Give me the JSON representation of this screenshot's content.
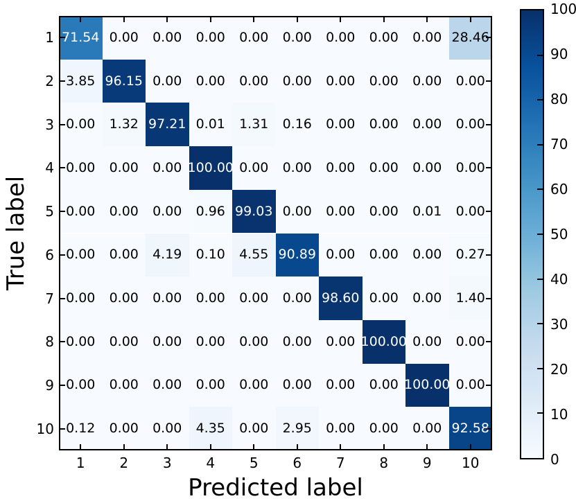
{
  "chart_data": {
    "type": "heatmap",
    "xlabel": "Predicted label",
    "ylabel": "True label",
    "x_categories": [
      "1",
      "2",
      "3",
      "4",
      "5",
      "6",
      "7",
      "8",
      "9",
      "10"
    ],
    "y_categories": [
      "1",
      "2",
      "3",
      "4",
      "5",
      "6",
      "7",
      "8",
      "9",
      "10"
    ],
    "matrix": [
      [
        71.54,
        0.0,
        0.0,
        0.0,
        0.0,
        0.0,
        0.0,
        0.0,
        0.0,
        28.46
      ],
      [
        3.85,
        96.15,
        0.0,
        0.0,
        0.0,
        0.0,
        0.0,
        0.0,
        0.0,
        0.0
      ],
      [
        0.0,
        1.32,
        97.21,
        0.01,
        1.31,
        0.16,
        0.0,
        0.0,
        0.0,
        0.0
      ],
      [
        0.0,
        0.0,
        0.0,
        100.0,
        0.0,
        0.0,
        0.0,
        0.0,
        0.0,
        0.0
      ],
      [
        0.0,
        0.0,
        0.0,
        0.96,
        99.03,
        0.0,
        0.0,
        0.0,
        0.01,
        0.0
      ],
      [
        0.0,
        0.0,
        4.19,
        0.1,
        4.55,
        90.89,
        0.0,
        0.0,
        0.0,
        0.27
      ],
      [
        0.0,
        0.0,
        0.0,
        0.0,
        0.0,
        0.0,
        98.6,
        0.0,
        0.0,
        1.4
      ],
      [
        0.0,
        0.0,
        0.0,
        0.0,
        0.0,
        0.0,
        0.0,
        100.0,
        0.0,
        0.0
      ],
      [
        0.0,
        0.0,
        0.0,
        0.0,
        0.0,
        0.0,
        0.0,
        0.0,
        100.0,
        0.0
      ],
      [
        0.12,
        0.0,
        0.0,
        4.35,
        0.0,
        2.95,
        0.0,
        0.0,
        0.0,
        92.58
      ]
    ],
    "value_decimals": 2,
    "vmin": 0,
    "vmax": 100,
    "colormap": "Blues",
    "colorbar_ticks": [
      0,
      10,
      20,
      30,
      40,
      50,
      60,
      70,
      80,
      90,
      100
    ],
    "colorbar_position": "right",
    "grid": false,
    "tick_direction": "in"
  },
  "colors": {
    "colormap_stops": [
      "#f7fbff",
      "#deebf7",
      "#c6dbef",
      "#9ecae1",
      "#6baed6",
      "#4292c6",
      "#2171b5",
      "#08519c",
      "#08306b"
    ],
    "spine": "#000000",
    "cell_text_dark": "#000000",
    "cell_text_light": "#ffffff",
    "background": "#ffffff"
  }
}
